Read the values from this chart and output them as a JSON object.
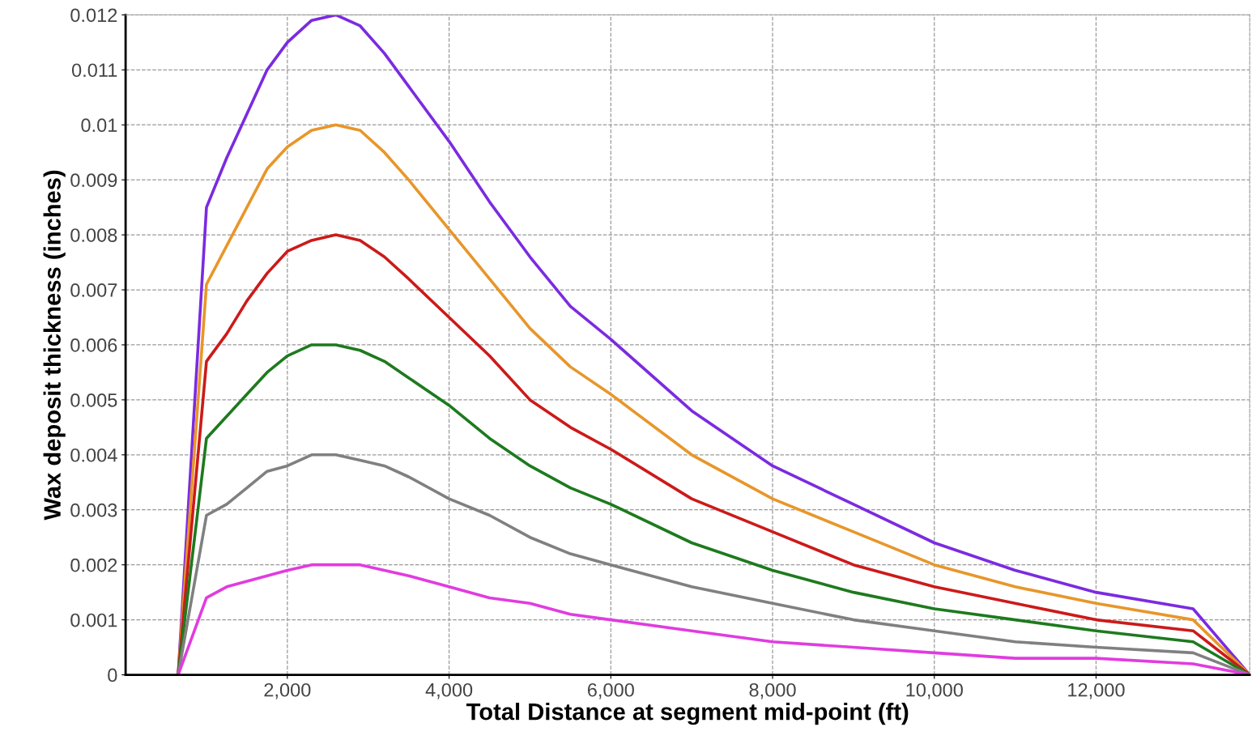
{
  "chart_data": {
    "type": "line",
    "xlabel": "Total Distance at segment mid-point (ft)",
    "ylabel": "Wax deposit thickness (inches)",
    "x": [
      650,
      1000,
      1250,
      1500,
      1750,
      2000,
      2300,
      2600,
      2900,
      3200,
      3500,
      4000,
      4500,
      5000,
      5500,
      6000,
      7000,
      8000,
      9000,
      10000,
      11000,
      12000,
      13200,
      13900
    ],
    "series": [
      {
        "color": "#7b2be0",
        "values": [
          0,
          0.0085,
          0.0094,
          0.0102,
          0.011,
          0.0115,
          0.0119,
          0.012,
          0.0118,
          0.0113,
          0.0107,
          0.0097,
          0.0086,
          0.0076,
          0.0067,
          0.0061,
          0.0048,
          0.0038,
          0.0031,
          0.0024,
          0.0019,
          0.0015,
          0.0012,
          0
        ]
      },
      {
        "color": "#e8962a",
        "values": [
          0,
          0.0071,
          0.0078,
          0.0085,
          0.0092,
          0.0096,
          0.0099,
          0.01,
          0.0099,
          0.0095,
          0.009,
          0.0081,
          0.0072,
          0.0063,
          0.0056,
          0.0051,
          0.004,
          0.0032,
          0.0026,
          0.002,
          0.0016,
          0.0013,
          0.001,
          0
        ]
      },
      {
        "color": "#cc1a1a",
        "values": [
          0,
          0.0057,
          0.0062,
          0.0068,
          0.0073,
          0.0077,
          0.0079,
          0.008,
          0.0079,
          0.0076,
          0.0072,
          0.0065,
          0.0058,
          0.005,
          0.0045,
          0.0041,
          0.0032,
          0.0026,
          0.002,
          0.0016,
          0.0013,
          0.001,
          0.0008,
          0
        ]
      },
      {
        "color": "#1e7a1e",
        "values": [
          0,
          0.0043,
          0.0047,
          0.0051,
          0.0055,
          0.0058,
          0.006,
          0.006,
          0.0059,
          0.0057,
          0.0054,
          0.0049,
          0.0043,
          0.0038,
          0.0034,
          0.0031,
          0.0024,
          0.0019,
          0.0015,
          0.0012,
          0.001,
          0.0008,
          0.0006,
          0
        ]
      },
      {
        "color": "#808080",
        "values": [
          0,
          0.0029,
          0.0031,
          0.0034,
          0.0037,
          0.0038,
          0.004,
          0.004,
          0.0039,
          0.0038,
          0.0036,
          0.0032,
          0.0029,
          0.0025,
          0.0022,
          0.002,
          0.0016,
          0.0013,
          0.001,
          0.0008,
          0.0006,
          0.0005,
          0.0004,
          0
        ]
      },
      {
        "color": "#e03ce0",
        "values": [
          0,
          0.0014,
          0.0016,
          0.0017,
          0.0018,
          0.0019,
          0.002,
          0.002,
          0.002,
          0.0019,
          0.0018,
          0.0016,
          0.0014,
          0.0013,
          0.0011,
          0.001,
          0.0008,
          0.0006,
          0.0005,
          0.0004,
          0.0003,
          0.0003,
          0.0002,
          0
        ]
      }
    ],
    "xlim": [
      0,
      13900
    ],
    "ylim": [
      0,
      0.012
    ],
    "xticks": [
      {
        "value": 2000,
        "label": "2,000"
      },
      {
        "value": 4000,
        "label": "4,000"
      },
      {
        "value": 6000,
        "label": "6,000"
      },
      {
        "value": 8000,
        "label": "8,000"
      },
      {
        "value": 10000,
        "label": "10,000"
      },
      {
        "value": 12000,
        "label": "12,000"
      }
    ],
    "yticks": [
      0,
      0.001,
      0.002,
      0.003,
      0.004,
      0.005,
      0.006,
      0.007,
      0.008,
      0.009,
      0.01,
      0.011,
      0.012
    ],
    "grid": true,
    "marker": "none",
    "line_style": "solid"
  }
}
